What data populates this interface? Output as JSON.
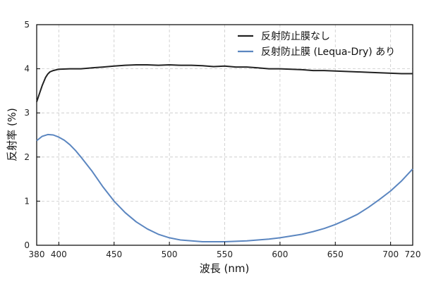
{
  "chart_data": {
    "type": "line",
    "xlabel": "波長 (nm)",
    "ylabel": "反射率 (%)",
    "xlim": [
      380,
      720
    ],
    "ylim": [
      0,
      5
    ],
    "xticks": [
      380,
      400,
      450,
      500,
      550,
      600,
      650,
      700,
      720
    ],
    "yticks": [
      0,
      1,
      2,
      3,
      4,
      5
    ],
    "grid": true,
    "legend_position": "top-right",
    "series": [
      {
        "name": "反射防止膜なし",
        "color": "#222222",
        "x": [
          380,
          382,
          385,
          388,
          390,
          392,
          395,
          400,
          410,
          420,
          430,
          440,
          450,
          460,
          470,
          480,
          490,
          500,
          510,
          520,
          530,
          540,
          550,
          560,
          570,
          580,
          590,
          600,
          610,
          620,
          630,
          640,
          650,
          660,
          670,
          680,
          690,
          700,
          710,
          720
        ],
        "y": [
          3.25,
          3.4,
          3.62,
          3.8,
          3.88,
          3.93,
          3.96,
          3.99,
          4.0,
          4.0,
          4.02,
          4.04,
          4.06,
          4.08,
          4.09,
          4.09,
          4.08,
          4.09,
          4.08,
          4.08,
          4.07,
          4.05,
          4.06,
          4.04,
          4.04,
          4.02,
          4.0,
          4.0,
          3.99,
          3.98,
          3.96,
          3.96,
          3.95,
          3.94,
          3.93,
          3.92,
          3.91,
          3.9,
          3.89,
          3.89
        ]
      },
      {
        "name": "反射防止膜 (Lequa-Dry) あり",
        "color": "#5b86c0",
        "x": [
          380,
          385,
          390,
          395,
          400,
          405,
          410,
          415,
          420,
          430,
          440,
          450,
          460,
          470,
          480,
          490,
          500,
          510,
          520,
          530,
          540,
          550,
          560,
          570,
          580,
          590,
          600,
          610,
          620,
          630,
          640,
          650,
          660,
          670,
          680,
          690,
          700,
          710,
          720
        ],
        "y": [
          2.37,
          2.47,
          2.51,
          2.5,
          2.45,
          2.38,
          2.28,
          2.15,
          2.0,
          1.68,
          1.32,
          1.0,
          0.74,
          0.53,
          0.37,
          0.25,
          0.17,
          0.12,
          0.1,
          0.08,
          0.08,
          0.08,
          0.09,
          0.1,
          0.12,
          0.14,
          0.17,
          0.21,
          0.25,
          0.31,
          0.38,
          0.47,
          0.58,
          0.7,
          0.86,
          1.04,
          1.23,
          1.46,
          1.73
        ]
      }
    ]
  }
}
